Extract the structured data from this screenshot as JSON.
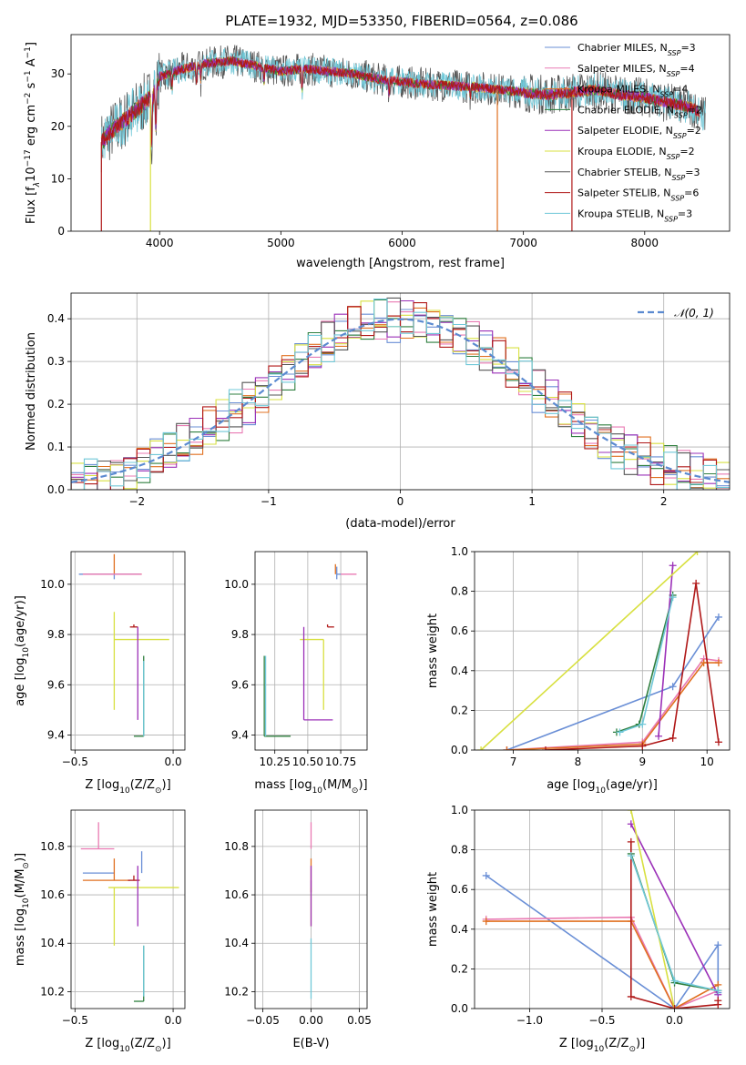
{
  "figure_title": "PLATE=1932, MJD=53350, FIBERID=0564, z=0.086",
  "colors": {
    "chabrier_miles": "#6a8fd6",
    "salpeter_miles": "#e97ab3",
    "kroupa_miles": "#e07020",
    "chabrier_elodie": "#2f7f3f",
    "salpeter_elodie": "#9b30b8",
    "kroupa_elodie": "#d8e040",
    "chabrier_stelib": "#555555",
    "salpeter_stelib": "#b01818",
    "kroupa_stelib": "#70c8d8",
    "normal": "#5b8ad0"
  },
  "chart_data": [
    {
      "id": "spectrum",
      "type": "line",
      "title": "PLATE=1932, MJD=53350, FIBERID=0564, z=0.086",
      "xlabel": "wavelength [Angstrom, rest frame]",
      "ylabel_parts": [
        "Flux [f",
        "λ",
        "10",
        "−17",
        " erg cm",
        "−2",
        " s",
        "−1",
        " A",
        "−1",
        "]"
      ],
      "xlim": [
        3270,
        8700
      ],
      "ylim": [
        0,
        37.5
      ],
      "xticks": [
        4000,
        5000,
        6000,
        7000,
        8000
      ],
      "yticks": [
        0,
        10,
        20,
        30
      ],
      "legend_position": "top-right",
      "continuum_knots": [
        [
          3520,
          17
        ],
        [
          3600,
          19
        ],
        [
          3700,
          21
        ],
        [
          3800,
          23
        ],
        [
          3900,
          25
        ],
        [
          3950,
          26
        ],
        [
          4000,
          29.5
        ],
        [
          4200,
          31
        ],
        [
          4400,
          32
        ],
        [
          4600,
          32.5
        ],
        [
          4800,
          31.5
        ],
        [
          5000,
          30.5
        ],
        [
          5200,
          31
        ],
        [
          5400,
          30.5
        ],
        [
          5600,
          30
        ],
        [
          5800,
          29
        ],
        [
          6000,
          28.5
        ],
        [
          6200,
          28
        ],
        [
          6400,
          27.8
        ],
        [
          6600,
          27.5
        ],
        [
          6800,
          27
        ],
        [
          7000,
          26.5
        ],
        [
          7200,
          26
        ],
        [
          7400,
          26.5
        ],
        [
          7600,
          27
        ],
        [
          7800,
          26
        ],
        [
          8000,
          25.5
        ],
        [
          8200,
          24.5
        ],
        [
          8400,
          23.5
        ],
        [
          8500,
          22
        ]
      ],
      "absorption_lines": [
        [
          3934,
          9
        ],
        [
          3969,
          8
        ],
        [
          4102,
          3
        ],
        [
          4304,
          3
        ],
        [
          4340,
          3
        ],
        [
          4861,
          3
        ],
        [
          5175,
          4
        ],
        [
          5893,
          2.5
        ],
        [
          6563,
          2
        ]
      ],
      "spikes": [
        [
          3520,
          0
        ],
        [
          3925,
          0
        ],
        [
          6785,
          0
        ],
        [
          7400,
          0
        ]
      ],
      "legend": [
        {
          "name": "Chabrier MILES",
          "n": "3",
          "color": "#6a8fd6"
        },
        {
          "name": "Salpeter MILES",
          "n": "4",
          "color": "#e97ab3"
        },
        {
          "name": "Kroupa MILES",
          "n": "4",
          "color": "#e07020"
        },
        {
          "name": "Chabrier ELODIE",
          "n": "2",
          "color": "#2f7f3f"
        },
        {
          "name": "Salpeter ELODIE",
          "n": "2",
          "color": "#9b30b8"
        },
        {
          "name": "Kroupa ELODIE",
          "n": "2",
          "color": "#d8e040"
        },
        {
          "name": "Chabrier STELIB",
          "n": "3",
          "color": "#555555"
        },
        {
          "name": "Salpeter STELIB",
          "n": "6",
          "color": "#b01818"
        },
        {
          "name": "Kroupa STELIB",
          "n": "3",
          "color": "#70c8d8"
        }
      ],
      "legend_sub": "SSP"
    },
    {
      "id": "residuals",
      "type": "histogram",
      "xlabel": "(data-model)/error",
      "ylabel": "Normed distribution",
      "xlim": [
        -2.5,
        2.5
      ],
      "ylim": [
        0,
        0.46
      ],
      "xticks": [
        -2,
        -1,
        0,
        1,
        2
      ],
      "yticks": [
        0.0,
        0.1,
        0.2,
        0.3,
        0.4
      ],
      "grid": true,
      "bin_width": 0.1,
      "legend": [
        {
          "label": "𝒩(0, 1)",
          "color": "#5b8ad0",
          "style": "dashed"
        }
      ],
      "legend_position": "top-right",
      "series": [
        {
          "color": "#6a8fd6",
          "phase": 0.0
        },
        {
          "color": "#e97ab3",
          "phase": 1.3
        },
        {
          "color": "#e07020",
          "phase": 2.1
        },
        {
          "color": "#2f7f3f",
          "phase": 2.9
        },
        {
          "color": "#9b30b8",
          "phase": 3.7
        },
        {
          "color": "#d8e040",
          "phase": 4.4
        },
        {
          "color": "#555555",
          "phase": 5.1
        },
        {
          "color": "#b01818",
          "phase": 5.9
        },
        {
          "color": "#70c8d8",
          "phase": 6.6
        }
      ]
    },
    {
      "id": "age_vs_z",
      "type": "errorbar",
      "xlabel_parts": [
        "Z [log",
        "10",
        "(Z/Z",
        "⊙",
        ")]"
      ],
      "ylabel_parts": [
        "age  [log",
        "10",
        "(age/yr)]"
      ],
      "xlim": [
        -0.52,
        0.06
      ],
      "ylim": [
        9.34,
        10.13
      ],
      "xticks": [
        -0.5,
        0.0
      ],
      "xtick_labels": [
        "−0.5",
        "0.0"
      ],
      "yticks": [
        9.4,
        9.6,
        9.8,
        10.0
      ],
      "grid": true,
      "points": [
        {
          "x": -0.3,
          "xlo": 0.16,
          "xhi": 0.14,
          "y": 10.04,
          "ylo": 0.0,
          "yhi": 0.08,
          "color": "#e07020"
        },
        {
          "x": -0.3,
          "xlo": 0.18,
          "xhi": 0.13,
          "y": 10.04,
          "ylo": 0.02,
          "yhi": 0.0,
          "color": "#6a8fd6"
        },
        {
          "x": -0.16,
          "xlo": 0.3,
          "xhi": 0.0,
          "y": 10.04,
          "ylo": 0.0,
          "yhi": 0.0,
          "color": "#e97ab3"
        },
        {
          "x": -0.3,
          "xlo": 0.0,
          "xhi": 0.28,
          "y": 9.78,
          "ylo": 0.28,
          "yhi": 0.11,
          "color": "#d8e040"
        },
        {
          "x": -0.2,
          "xlo": 0.02,
          "xhi": 0.02,
          "y": 9.83,
          "ylo": 0.0,
          "yhi": 0.01,
          "color": "#b01818"
        },
        {
          "x": -0.18,
          "xlo": 0.0,
          "xhi": 0.0,
          "y": 9.83,
          "ylo": 0.37,
          "yhi": 0.0,
          "color": "#9b30b8"
        },
        {
          "x": -0.18,
          "xlo": 0.0,
          "xhi": 0.0,
          "y": 9.46,
          "ylo": 0.0,
          "yhi": 0.0,
          "color": "#9b30b8"
        },
        {
          "x": -0.15,
          "xlo": 0.05,
          "xhi": 0.0,
          "y": 9.395,
          "ylo": 0.0,
          "yhi": 0.32,
          "color": "#2f7f3f"
        },
        {
          "x": -0.15,
          "xlo": 0.0,
          "xhi": 0.0,
          "y": 9.395,
          "ylo": 0.0,
          "yhi": 0.3,
          "color": "#70c8d8"
        }
      ]
    },
    {
      "id": "age_vs_mass",
      "type": "errorbar",
      "xlabel_parts": [
        "mass [log",
        "10",
        "(M/M",
        "⊙",
        ")]"
      ],
      "xlim": [
        10.1,
        10.95
      ],
      "ylim": [
        9.34,
        10.13
      ],
      "xticks": [
        10.25,
        10.5,
        10.75
      ],
      "xtick_labels": [
        "10.25",
        "10.50",
        "10.75"
      ],
      "yticks": [
        9.4,
        9.6,
        9.8,
        10.0
      ],
      "grid": true,
      "points": [
        {
          "x": 10.75,
          "xlo": 0.0,
          "xhi": 0.12,
          "y": 10.04,
          "ylo": 0.0,
          "yhi": 0.0,
          "color": "#e97ab3"
        },
        {
          "x": 10.72,
          "xlo": 0.0,
          "xhi": 0.03,
          "y": 10.04,
          "ylo": 0.02,
          "yhi": 0.03,
          "color": "#6a8fd6"
        },
        {
          "x": 10.71,
          "xlo": 0.0,
          "xhi": 0.0,
          "y": 10.04,
          "ylo": 0.0,
          "yhi": 0.04,
          "color": "#e07020"
        },
        {
          "x": 10.65,
          "xlo": 0.0,
          "xhi": 0.05,
          "y": 9.83,
          "ylo": 0.0,
          "yhi": 0.01,
          "color": "#b01818"
        },
        {
          "x": 10.62,
          "xlo": 0.18,
          "xhi": 0.0,
          "y": 9.78,
          "ylo": 0.28,
          "yhi": 0.0,
          "color": "#d8e040"
        },
        {
          "x": 10.47,
          "xlo": 0.0,
          "xhi": 0.0,
          "y": 9.83,
          "ylo": 0.37,
          "yhi": 0.0,
          "color": "#9b30b8"
        },
        {
          "x": 10.47,
          "xlo": 0.0,
          "xhi": 0.22,
          "y": 9.46,
          "ylo": 0.0,
          "yhi": 0.0,
          "color": "#9b30b8"
        },
        {
          "x": 10.17,
          "xlo": 0.0,
          "xhi": 0.2,
          "y": 9.395,
          "ylo": 0.0,
          "yhi": 0.32,
          "color": "#2f7f3f"
        },
        {
          "x": 10.18,
          "xlo": 0.0,
          "xhi": 0.0,
          "y": 9.395,
          "ylo": 0.0,
          "yhi": 0.32,
          "color": "#70c8d8"
        }
      ]
    },
    {
      "id": "weight_vs_age",
      "type": "line",
      "xlabel_parts": [
        "age  [log",
        "10",
        "(age/yr)]"
      ],
      "ylabel": "mass weight",
      "xlim": [
        6.4,
        10.35
      ],
      "ylim": [
        0,
        1.0
      ],
      "xticks": [
        7,
        8,
        9,
        10
      ],
      "yticks": [
        0.0,
        0.2,
        0.4,
        0.6,
        0.8,
        1.0
      ],
      "grid": true,
      "series": [
        {
          "color": "#6a8fd6",
          "x": [
            6.9,
            9.47,
            10.18
          ],
          "y": [
            0.0,
            0.32,
            0.67
          ]
        },
        {
          "color": "#e97ab3",
          "x": [
            6.9,
            9.0,
            9.95,
            10.18
          ],
          "y": [
            0.0,
            0.04,
            0.46,
            0.45
          ]
        },
        {
          "color": "#e07020",
          "x": [
            6.9,
            9.0,
            9.95,
            10.18
          ],
          "y": [
            0.0,
            0.03,
            0.44,
            0.44
          ]
        },
        {
          "color": "#2f7f3f",
          "x": [
            8.6,
            8.95,
            9.47
          ],
          "y": [
            0.09,
            0.13,
            0.78
          ]
        },
        {
          "color": "#9b30b8",
          "x": [
            9.25,
            9.47
          ],
          "y": [
            0.07,
            0.93
          ]
        },
        {
          "color": "#d8e040",
          "x": [
            6.5,
            9.85
          ],
          "y": [
            0.0,
            1.0
          ]
        },
        {
          "color": "#b01818",
          "x": [
            7.5,
            9.0,
            9.47,
            9.83,
            10.18
          ],
          "y": [
            0.0,
            0.02,
            0.06,
            0.84,
            0.04
          ]
        },
        {
          "color": "#70c8d8",
          "x": [
            8.65,
            9.0,
            9.47
          ],
          "y": [
            0.09,
            0.13,
            0.77
          ]
        }
      ]
    },
    {
      "id": "mass_vs_z",
      "type": "errorbar",
      "xlabel_parts": [
        "Z [log",
        "10",
        "(Z/Z",
        "⊙",
        ")]"
      ],
      "ylabel_parts": [
        "mass [log",
        "10",
        "(M/M",
        "⊙",
        ")]"
      ],
      "xlim": [
        -0.52,
        0.06
      ],
      "ylim": [
        10.13,
        10.95
      ],
      "xticks": [
        -0.5,
        0.0
      ],
      "xtick_labels": [
        "−0.5",
        "0.0"
      ],
      "yticks": [
        10.2,
        10.4,
        10.6,
        10.8
      ],
      "grid": true,
      "points": [
        {
          "x": -0.38,
          "xlo": 0.09,
          "xhi": 0.08,
          "y": 10.79,
          "ylo": 0.0,
          "yhi": 0.11,
          "color": "#e97ab3"
        },
        {
          "x": -0.3,
          "xlo": 0.16,
          "xhi": 0.0,
          "y": 10.69,
          "ylo": 0.0,
          "yhi": 0.0,
          "color": "#6a8fd6"
        },
        {
          "x": -0.16,
          "xlo": 0.0,
          "xhi": 0.0,
          "y": 10.69,
          "ylo": 0.0,
          "yhi": 0.09,
          "color": "#6a8fd6"
        },
        {
          "x": -0.3,
          "xlo": 0.16,
          "xhi": 0.08,
          "y": 10.66,
          "ylo": 0.0,
          "yhi": 0.09,
          "color": "#e07020"
        },
        {
          "x": -0.3,
          "xlo": 0.03,
          "xhi": 0.33,
          "y": 10.63,
          "ylo": 0.24,
          "yhi": 0.0,
          "color": "#d8e040"
        },
        {
          "x": -0.2,
          "xlo": 0.03,
          "xhi": 0.03,
          "y": 10.66,
          "ylo": 0.0,
          "yhi": 0.02,
          "color": "#b01818"
        },
        {
          "x": -0.18,
          "xlo": 0.0,
          "xhi": 0.0,
          "y": 10.47,
          "ylo": 0.0,
          "yhi": 0.25,
          "color": "#9b30b8"
        },
        {
          "x": -0.28,
          "xlo": 0.0,
          "xhi": 0.0,
          "y": 10.47,
          "ylo": 0.0,
          "yhi": 0.0,
          "color": "#9b30b8"
        },
        {
          "x": -0.15,
          "xlo": 0.05,
          "xhi": 0.0,
          "y": 10.16,
          "ylo": 0.0,
          "yhi": 0.23,
          "color": "#2f7f3f"
        },
        {
          "x": -0.15,
          "xlo": 0.0,
          "xhi": 0.0,
          "y": 10.18,
          "ylo": 0.0,
          "yhi": 0.21,
          "color": "#70c8d8"
        }
      ]
    },
    {
      "id": "mass_vs_ebv",
      "type": "errorbar",
      "xlabel": "E(B-V)",
      "xlim": [
        -0.058,
        0.058
      ],
      "ylim": [
        10.13,
        10.95
      ],
      "xticks": [
        -0.05,
        0.0,
        0.05
      ],
      "xtick_labels": [
        "−0.05",
        "0.00",
        "0.05"
      ],
      "yticks": [
        10.2,
        10.4,
        10.6,
        10.8
      ],
      "grid": true,
      "points": [
        {
          "x": 0.0,
          "xlo": 0.0,
          "xhi": 0.0,
          "y": 10.79,
          "ylo": 0.0,
          "yhi": 0.11,
          "color": "#e97ab3"
        },
        {
          "x": 0.0,
          "xlo": 0.0,
          "xhi": 0.0,
          "y": 10.66,
          "ylo": 0.0,
          "yhi": 0.09,
          "color": "#e07020"
        },
        {
          "x": 0.0,
          "xlo": 0.0,
          "xhi": 0.0,
          "y": 10.66,
          "ylo": 0.05,
          "yhi": 0.0,
          "color": "#b01818"
        },
        {
          "x": 0.0,
          "xlo": 0.0,
          "xhi": 0.0,
          "y": 10.47,
          "ylo": 0.0,
          "yhi": 0.16,
          "color": "#d8e040"
        },
        {
          "x": 0.0,
          "xlo": 0.0,
          "xhi": 0.0,
          "y": 10.47,
          "ylo": 0.0,
          "yhi": 0.25,
          "color": "#9b30b8"
        },
        {
          "x": 0.0,
          "xlo": 0.0,
          "xhi": 0.0,
          "y": 10.17,
          "ylo": 0.0,
          "yhi": 0.25,
          "color": "#70c8d8"
        }
      ]
    },
    {
      "id": "weight_vs_z",
      "type": "line",
      "xlabel_parts": [
        "Z [log",
        "10",
        "(Z/Z",
        "⊙",
        ")]"
      ],
      "ylabel": "mass weight",
      "xlim": [
        -1.38,
        0.38
      ],
      "ylim": [
        0,
        1.0
      ],
      "xticks": [
        -1.0,
        -0.5,
        0.0
      ],
      "xtick_labels": [
        "−1.0",
        "−0.5",
        "0.0"
      ],
      "yticks": [
        0.0,
        0.2,
        0.4,
        0.6,
        0.8,
        1.0
      ],
      "grid": true,
      "series": [
        {
          "color": "#6a8fd6",
          "x": [
            -1.3,
            0.0,
            0.3,
            0.3
          ],
          "y": [
            0.67,
            0.0,
            0.32,
            0.08
          ]
        },
        {
          "color": "#e97ab3",
          "x": [
            -1.3,
            -0.3,
            0.0,
            0.3
          ],
          "y": [
            0.45,
            0.46,
            0.0,
            0.09
          ]
        },
        {
          "color": "#e07020",
          "x": [
            -1.3,
            -0.3,
            0.0,
            0.3
          ],
          "y": [
            0.44,
            0.44,
            0.0,
            0.12
          ]
        },
        {
          "color": "#2f7f3f",
          "x": [
            -0.3,
            0.0,
            0.3
          ],
          "y": [
            0.78,
            0.13,
            0.09
          ]
        },
        {
          "color": "#9b30b8",
          "x": [
            -0.3,
            0.3
          ],
          "y": [
            0.93,
            0.07
          ]
        },
        {
          "color": "#d8e040",
          "x": [
            -0.3,
            0.0
          ],
          "y": [
            1.0,
            0.0
          ]
        },
        {
          "color": "#b01818",
          "x": [
            -0.3,
            -0.3,
            0.0,
            0.3,
            0.3
          ],
          "y": [
            0.84,
            0.06,
            0.0,
            0.02,
            0.04
          ]
        },
        {
          "color": "#70c8d8",
          "x": [
            -0.3,
            0.0,
            0.3
          ],
          "y": [
            0.77,
            0.14,
            0.09
          ]
        }
      ]
    }
  ]
}
